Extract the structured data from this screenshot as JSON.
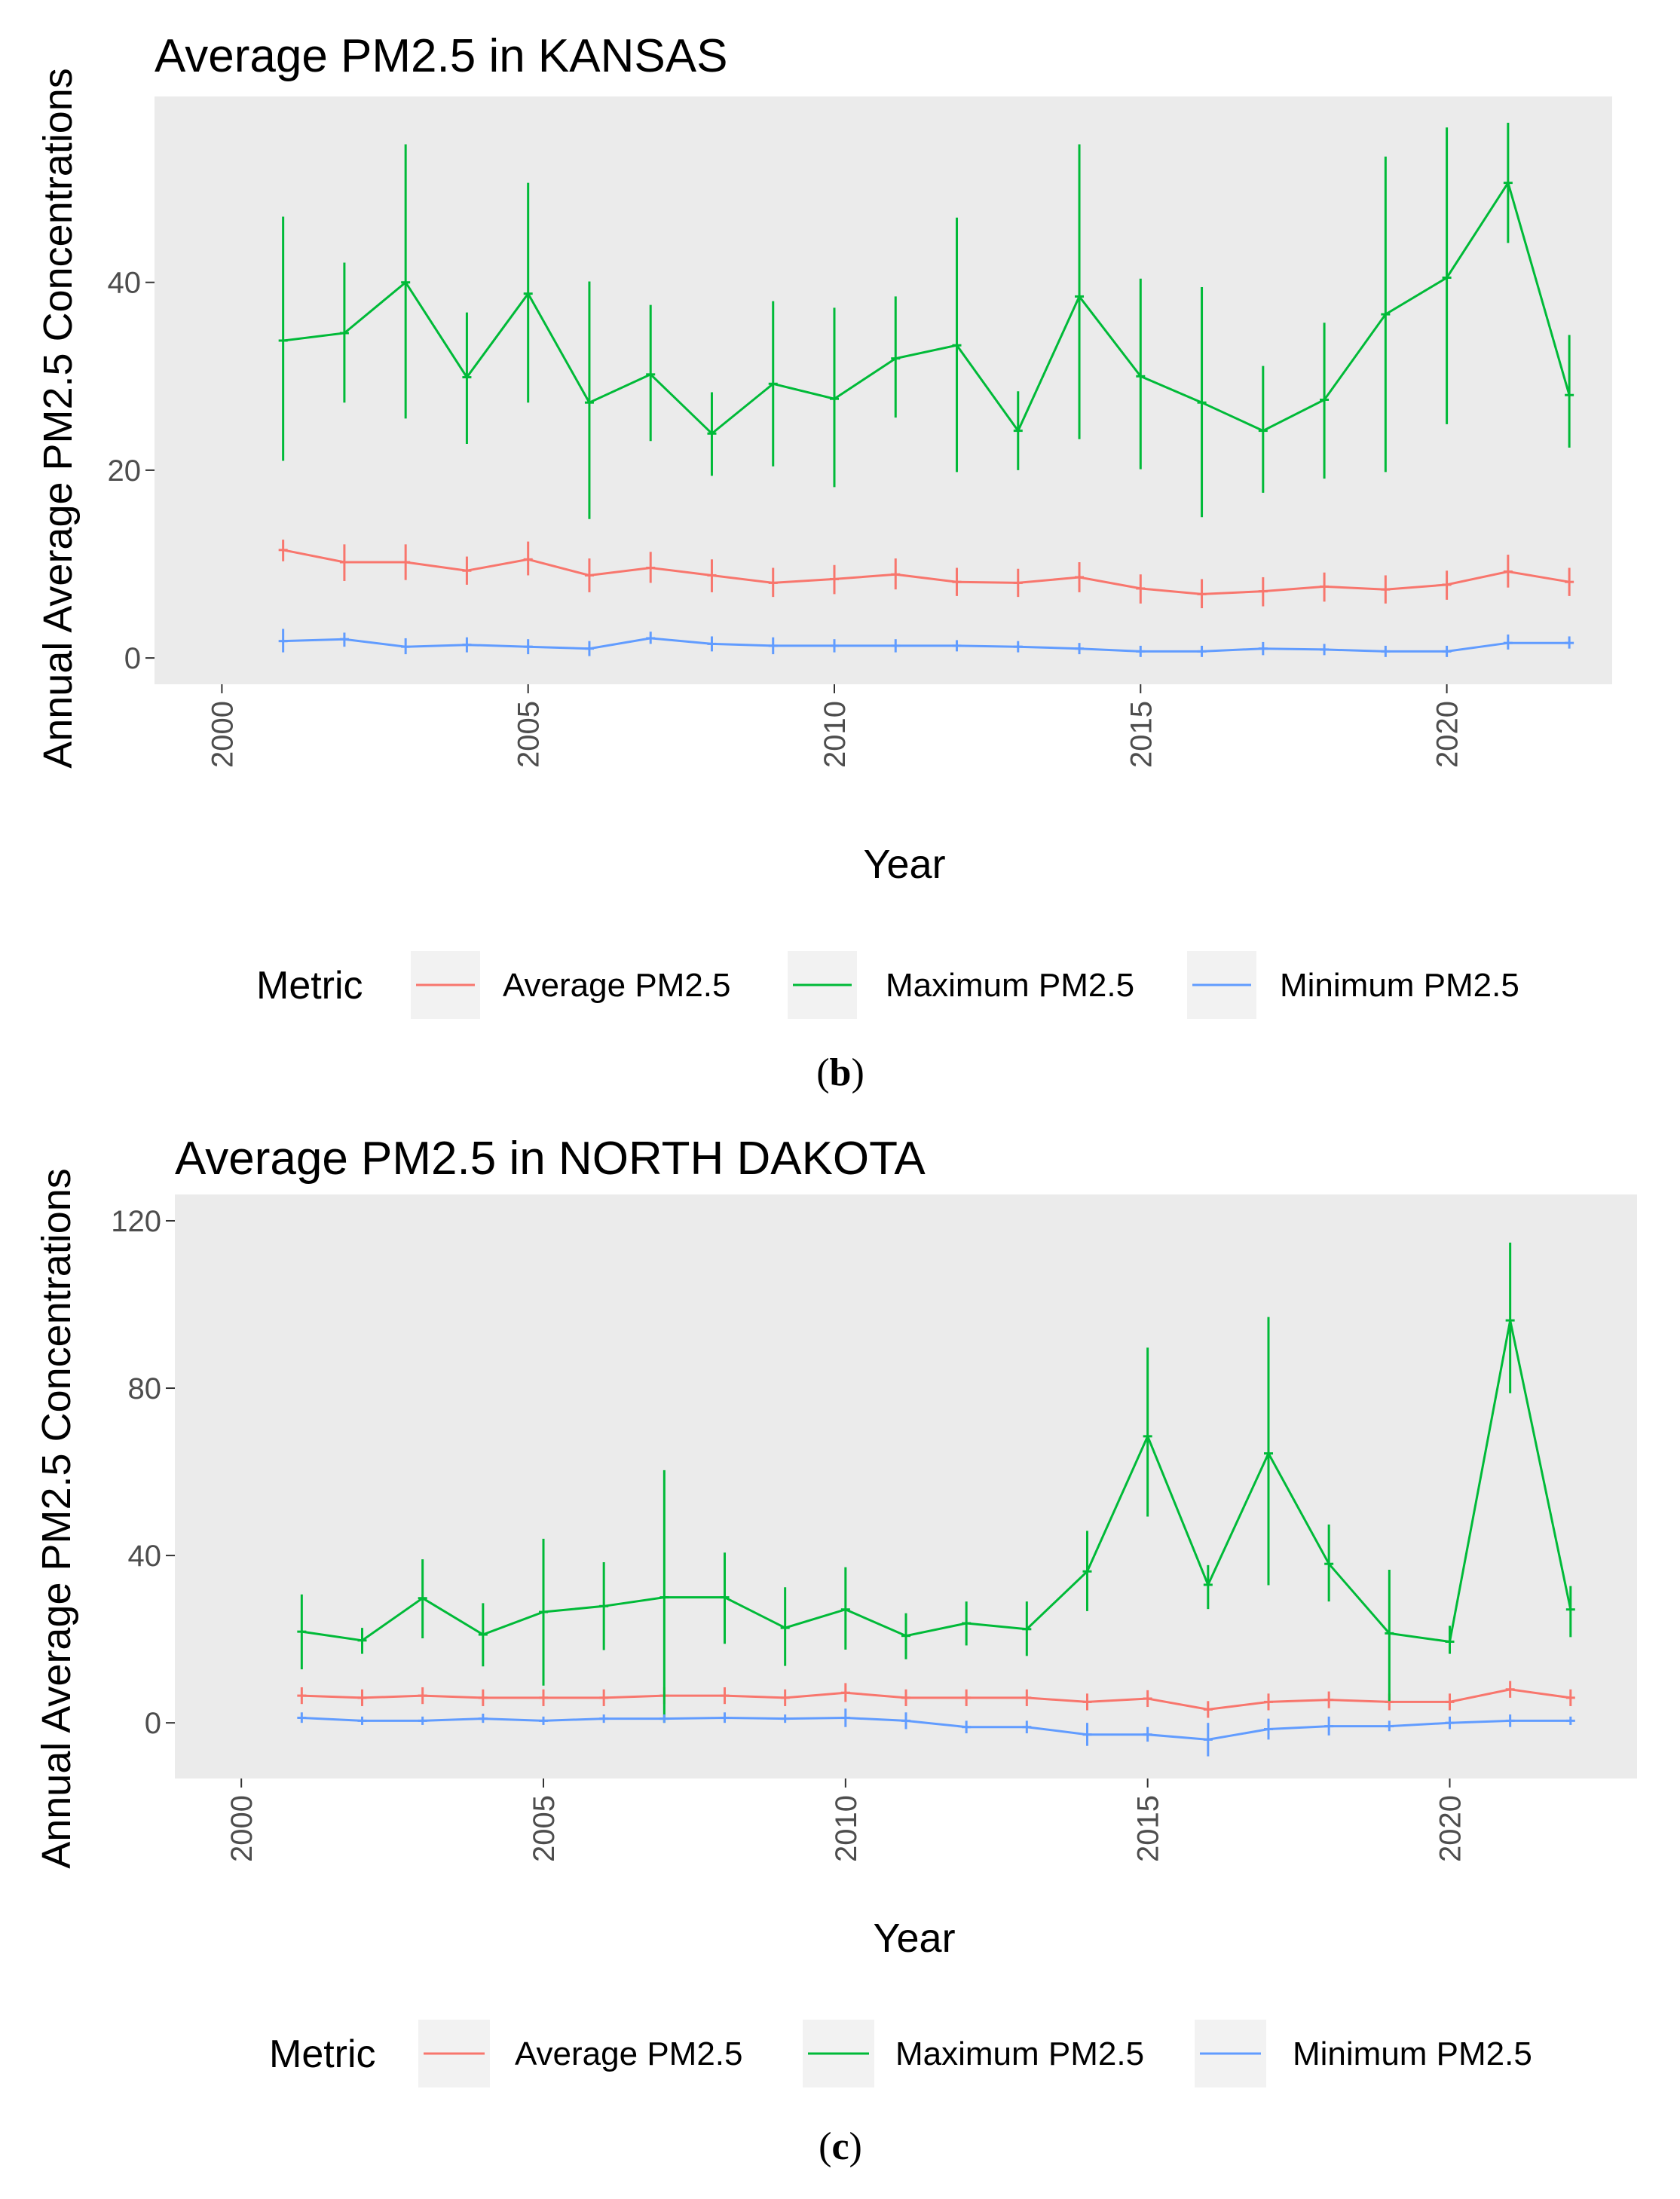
{
  "chart_data": [
    {
      "type": "line",
      "panel_label_open": "(",
      "panel_label": "b",
      "panel_label_close": ")",
      "title": "Average PM2.5 in KANSAS",
      "xlabel": "Year",
      "ylabel": "Annual Average PM2.5 Concentrations",
      "xlim": [
        1998.9,
        2022.7
      ],
      "ylim": [
        -2.8,
        59.8
      ],
      "xticks": [
        2000,
        2005,
        2010,
        2015,
        2020
      ],
      "yticks": [
        0,
        20,
        40
      ],
      "grid": false,
      "legend_title": "Metric",
      "legend_position": "bottom",
      "x": [
        2001,
        2002,
        2003,
        2004,
        2005,
        2006,
        2007,
        2008,
        2009,
        2010,
        2011,
        2012,
        2013,
        2014,
        2015,
        2016,
        2017,
        2018,
        2019,
        2020,
        2021,
        2022
      ],
      "series": [
        {
          "name": "Average PM2.5",
          "color": "#F8766D",
          "values": [
            11.5,
            10.2,
            10.2,
            9.3,
            10.5,
            8.8,
            9.6,
            8.8,
            8.0,
            8.4,
            8.9,
            8.1,
            8.0,
            8.6,
            7.4,
            6.8,
            7.1,
            7.6,
            7.3,
            7.8,
            9.2,
            8.1
          ],
          "lower": [
            10.3,
            8.2,
            8.3,
            7.8,
            8.8,
            7.0,
            8.0,
            7.0,
            6.5,
            6.8,
            7.3,
            6.6,
            6.5,
            7.0,
            5.8,
            5.3,
            5.5,
            6.0,
            5.8,
            6.2,
            7.5,
            6.6
          ],
          "upper": [
            12.6,
            12.1,
            12.1,
            10.8,
            12.4,
            10.6,
            11.3,
            10.5,
            9.6,
            9.9,
            10.6,
            9.6,
            9.5,
            10.2,
            8.9,
            8.4,
            8.6,
            9.1,
            8.8,
            9.3,
            11.0,
            9.6
          ]
        },
        {
          "name": "Maximum PM2.5",
          "color": "#00BA38",
          "values": [
            33.8,
            34.6,
            40.0,
            29.9,
            38.8,
            27.2,
            30.2,
            23.9,
            29.2,
            27.6,
            31.9,
            33.3,
            24.2,
            38.5,
            30.0,
            27.2,
            24.2,
            27.5,
            36.6,
            40.5,
            50.6,
            28.0
          ],
          "lower": [
            21.0,
            27.2,
            25.5,
            22.8,
            27.2,
            14.8,
            23.1,
            19.4,
            20.4,
            18.2,
            25.6,
            19.8,
            20.0,
            23.3,
            20.1,
            15.0,
            17.6,
            19.1,
            19.8,
            24.9,
            44.2,
            22.4
          ],
          "upper": [
            47.0,
            42.1,
            54.7,
            36.8,
            50.6,
            40.1,
            37.6,
            28.3,
            38.0,
            37.3,
            38.5,
            46.9,
            28.4,
            54.7,
            40.4,
            39.5,
            31.1,
            35.7,
            53.4,
            56.5,
            57.0,
            34.4
          ]
        },
        {
          "name": "Minimum PM2.5",
          "color": "#619CFF",
          "values": [
            1.8,
            2.0,
            1.2,
            1.4,
            1.2,
            1.0,
            2.1,
            1.5,
            1.3,
            1.3,
            1.3,
            1.3,
            1.2,
            1.0,
            0.7,
            0.7,
            1.0,
            0.9,
            0.7,
            0.7,
            1.6,
            1.6
          ],
          "lower": [
            0.6,
            1.2,
            0.4,
            0.6,
            0.4,
            0.2,
            1.5,
            0.7,
            0.4,
            0.6,
            0.6,
            0.7,
            0.6,
            0.4,
            0.1,
            0.1,
            0.3,
            0.3,
            0.1,
            0.1,
            0.9,
            1.0
          ],
          "upper": [
            3.1,
            2.7,
            2.1,
            2.2,
            2.0,
            1.8,
            2.8,
            2.3,
            2.2,
            2.0,
            2.0,
            1.9,
            1.8,
            1.6,
            1.3,
            1.3,
            1.7,
            1.5,
            1.3,
            1.3,
            2.5,
            2.3
          ]
        }
      ]
    },
    {
      "type": "line",
      "panel_label_open": "(",
      "panel_label": "c",
      "panel_label_close": ")",
      "title": "Average PM2.5 in NORTH DAKOTA",
      "xlabel": "Year",
      "ylabel": "Annual Average PM2.5 Concentrations",
      "xlim": [
        1998.9,
        2023.1
      ],
      "ylim": [
        -13.3,
        126.3
      ],
      "xticks": [
        2000,
        2005,
        2010,
        2015,
        2020
      ],
      "yticks": [
        0,
        40,
        80,
        120
      ],
      "grid": false,
      "legend_title": "Metric",
      "legend_position": "bottom",
      "x": [
        2001,
        2002,
        2003,
        2004,
        2005,
        2006,
        2007,
        2008,
        2009,
        2010,
        2011,
        2012,
        2013,
        2014,
        2015,
        2016,
        2017,
        2018,
        2019,
        2020,
        2021,
        2022
      ],
      "series": [
        {
          "name": "Average PM2.5",
          "color": "#F8766D",
          "values": [
            6.5,
            6.0,
            6.5,
            6.0,
            6.0,
            6.0,
            6.5,
            6.5,
            6.0,
            7.2,
            6.0,
            6.0,
            6.0,
            5.0,
            5.8,
            3.2,
            5.0,
            5.5,
            5.0,
            5.0,
            8.0,
            6.0
          ],
          "lower": [
            4.5,
            4.0,
            4.5,
            4.0,
            4.0,
            4.0,
            4.5,
            4.5,
            4.0,
            5.0,
            4.0,
            4.0,
            4.0,
            3.0,
            3.8,
            1.2,
            3.0,
            3.5,
            3.0,
            3.0,
            6.0,
            4.0
          ],
          "upper": [
            8.5,
            8.0,
            8.5,
            8.0,
            8.0,
            8.0,
            8.5,
            8.5,
            8.0,
            9.5,
            8.0,
            8.0,
            8.0,
            7.0,
            7.8,
            5.2,
            7.0,
            7.5,
            7.0,
            7.0,
            10.0,
            8.0
          ]
        },
        {
          "name": "Maximum PM2.5",
          "color": "#00BA38",
          "values": [
            21.8,
            19.7,
            29.8,
            21.1,
            26.5,
            27.9,
            30.0,
            30.0,
            22.7,
            27.1,
            20.8,
            23.8,
            22.4,
            36.2,
            68.5,
            33.0,
            64.4,
            38.0,
            21.4,
            19.4,
            96.2,
            27.1
          ],
          "lower": [
            12.8,
            16.5,
            20.2,
            13.5,
            8.9,
            17.4,
            0.0,
            18.9,
            13.6,
            17.5,
            15.2,
            18.5,
            16.0,
            26.7,
            49.3,
            27.2,
            32.9,
            29.0,
            5.2,
            16.5,
            78.8,
            20.5
          ],
          "upper": [
            30.7,
            22.7,
            39.1,
            28.6,
            44.0,
            38.4,
            60.4,
            40.7,
            32.4,
            37.2,
            26.2,
            29.0,
            29.0,
            45.9,
            89.7,
            37.7,
            97.0,
            47.4,
            36.6,
            23.2,
            114.8,
            32.7
          ]
        },
        {
          "name": "Minimum PM2.5",
          "color": "#619CFF",
          "values": [
            1.2,
            0.5,
            0.5,
            1.0,
            0.5,
            1.0,
            1.0,
            1.2,
            1.0,
            1.2,
            0.5,
            -1.0,
            -1.0,
            -2.8,
            -2.8,
            -4.0,
            -1.5,
            -0.8,
            -0.8,
            0.0,
            0.5,
            0.5
          ],
          "lower": [
            0.0,
            -0.5,
            -0.5,
            0.0,
            -0.5,
            0.0,
            0.0,
            0.0,
            0.0,
            -1.0,
            -1.5,
            -2.5,
            -2.5,
            -5.5,
            -4.5,
            -8.0,
            -4.0,
            -3.0,
            -2.0,
            -1.5,
            -1.0,
            -0.5
          ],
          "upper": [
            2.5,
            1.5,
            1.5,
            2.2,
            1.5,
            2.0,
            2.0,
            2.5,
            2.0,
            3.4,
            2.5,
            0.5,
            0.5,
            0.0,
            -1.0,
            0.0,
            1.0,
            1.5,
            0.5,
            1.5,
            2.0,
            1.5
          ]
        }
      ]
    }
  ]
}
